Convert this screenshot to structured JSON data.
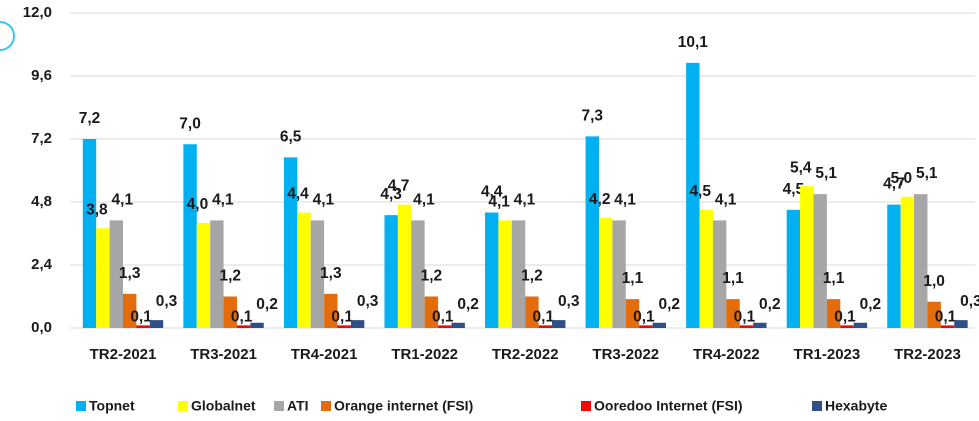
{
  "chart_data": {
    "type": "bar",
    "categories": [
      "TR2-2021",
      "TR3-2021",
      "TR4-2021",
      "TR1-2022",
      "TR2-2022",
      "TR3-2022",
      "TR4-2022",
      "TR1-2023",
      "TR2-2023"
    ],
    "series": [
      {
        "name": "Topnet",
        "color": "#00b0f0",
        "values": [
          7.2,
          7.0,
          6.5,
          4.3,
          4.4,
          7.3,
          10.1,
          4.5,
          4.7
        ],
        "value_labels": [
          "7,2",
          "7,0",
          "6,5",
          "4,3",
          "4,4",
          "7,3",
          "10,1",
          "4,5",
          "4,7"
        ]
      },
      {
        "name": "Globalnet",
        "color": "#ffff00",
        "values": [
          3.8,
          4.0,
          4.4,
          4.7,
          4.1,
          4.2,
          4.5,
          5.4,
          5.0
        ],
        "value_labels": [
          "3,8",
          "4,0",
          "4,4",
          "4,7",
          "4,1",
          "4,2",
          "4,5",
          "5,4",
          "5,0"
        ]
      },
      {
        "name": "ATI",
        "color": "#a6a6a6",
        "values": [
          4.1,
          4.1,
          4.1,
          4.1,
          4.1,
          4.1,
          4.1,
          5.1,
          5.1
        ],
        "value_labels": [
          "4,1",
          "4,1",
          "4,1",
          "4,1",
          "4,1",
          "4,1",
          "4,1",
          "5,1",
          "5,1"
        ]
      },
      {
        "name": "Orange internet (FSI)",
        "color": "#e46c0a",
        "values": [
          1.3,
          1.2,
          1.3,
          1.2,
          1.2,
          1.1,
          1.1,
          1.1,
          1.0
        ],
        "value_labels": [
          "1,3",
          "1,2",
          "1,3",
          "1,2",
          "1,2",
          "1,1",
          "1,1",
          "1,1",
          "1,0"
        ]
      },
      {
        "name": "Ooredoo Internet (FSI)",
        "color": "#ff0000",
        "values": [
          0.1,
          0.1,
          0.1,
          0.1,
          0.1,
          0.1,
          0.1,
          0.1,
          0.1
        ],
        "value_labels": [
          "0,1",
          "0,1",
          "0,1",
          "0,1",
          "0,1",
          "0,1",
          "0,1",
          "0,1",
          "0,1"
        ]
      },
      {
        "name": "Hexabyte",
        "color": "#2f4f86",
        "values": [
          0.3,
          0.2,
          0.3,
          0.2,
          0.3,
          0.2,
          0.2,
          0.2,
          0.3
        ],
        "value_labels": [
          "0,3",
          "0,2",
          "0,3",
          "0,2",
          "0,3",
          "0,2",
          "0,2",
          "0,2",
          "0,3"
        ]
      }
    ],
    "ylim": [
      0,
      12
    ],
    "yticks": [
      {
        "value": 0,
        "label": "0,0"
      },
      {
        "value": 2.4,
        "label": "2,4"
      },
      {
        "value": 4.8,
        "label": "4,8"
      },
      {
        "value": 7.2,
        "label": "7,2"
      },
      {
        "value": 9.6,
        "label": "9,6"
      },
      {
        "value": 12,
        "label": "12,0"
      }
    ],
    "grid": true,
    "legend": "bottom"
  }
}
